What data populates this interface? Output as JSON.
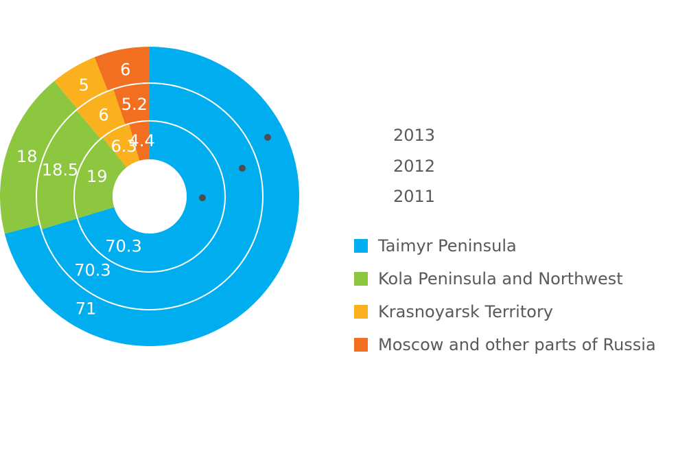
{
  "chart_data": {
    "type": "pie",
    "variant": "nested-donut",
    "rings_outer_to_inner": [
      "2013",
      "2012",
      "2011"
    ],
    "categories": [
      "Taimyr Peninsula",
      "Kola Peninsula and Northwest",
      "Krasnoyarsk Territory",
      "Moscow and other parts of Russia"
    ],
    "series": [
      {
        "name": "2013",
        "values": [
          71,
          18,
          5,
          6
        ],
        "labels": [
          "71",
          "18",
          "5",
          "6"
        ]
      },
      {
        "name": "2012",
        "values": [
          70.3,
          18.5,
          6,
          5.2
        ],
        "labels": [
          "70.3",
          "18.5",
          "6",
          "5.2"
        ]
      },
      {
        "name": "2011",
        "values": [
          70.3,
          19,
          6.3,
          4.4
        ],
        "labels": [
          "70.3",
          "19",
          "6.3",
          "4.4"
        ]
      }
    ],
    "colors": [
      "#00adef",
      "#8dc63f",
      "#fbb11d",
      "#f26f21"
    ],
    "legend_position": "right"
  },
  "year_labels": [
    "2013",
    "2012",
    "2011"
  ],
  "legend": [
    {
      "label": "Taimyr Peninsula",
      "color": "#00adef"
    },
    {
      "label": "Kola Peninsula and Northwest",
      "color": "#8dc63f"
    },
    {
      "label": "Krasnoyarsk Territory",
      "color": "#fbb11d"
    },
    {
      "label": "Moscow and other parts of Russia",
      "color": "#f26f21"
    }
  ]
}
